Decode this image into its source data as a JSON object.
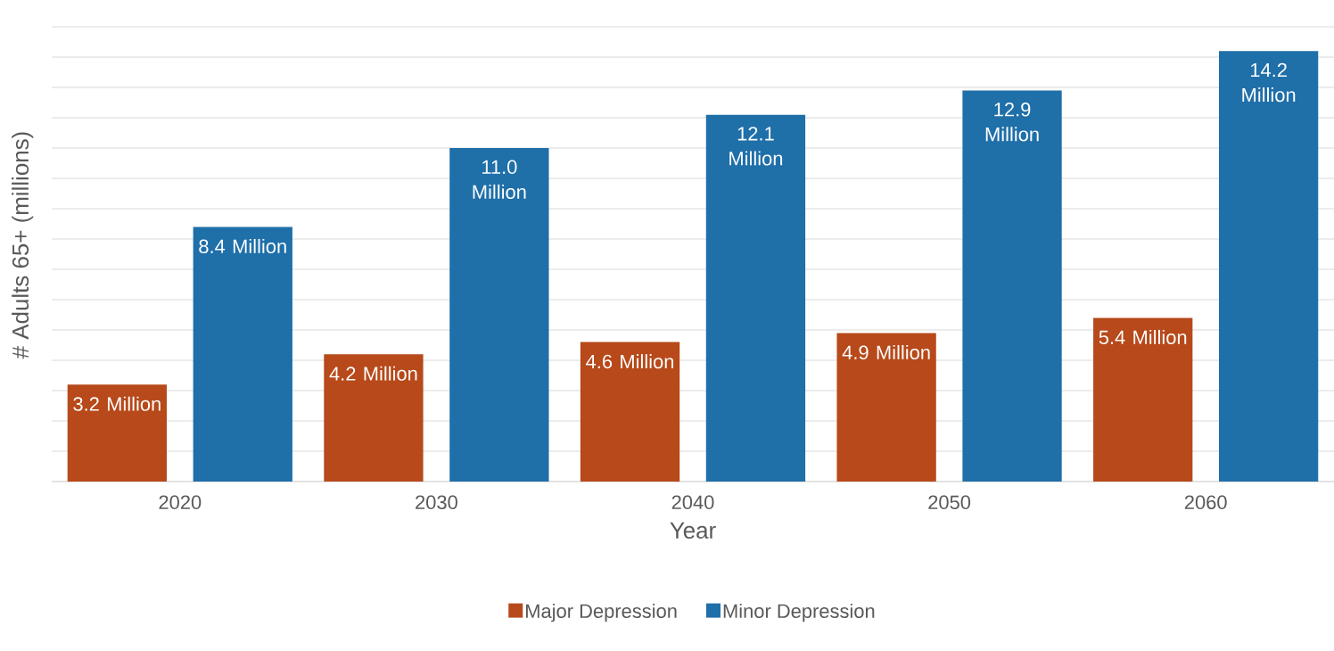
{
  "chart_data": {
    "type": "bar",
    "xlabel": "Year",
    "ylabel": "# Adults 65+ (millions)",
    "categories": [
      "2020",
      "2030",
      "2040",
      "2050",
      "2060"
    ],
    "series": [
      {
        "name": "Major Depression",
        "color": "#b7491a",
        "values": [
          3.2,
          4.2,
          4.6,
          4.9,
          5.4
        ],
        "value_labels": [
          "3.2 Million",
          "4.2 Million",
          "4.6 Million",
          "4.9 Million",
          "5.4 Million"
        ]
      },
      {
        "name": "Minor Depression",
        "color": "#1f6fa9",
        "values": [
          8.4,
          11.0,
          12.1,
          12.9,
          14.2
        ],
        "value_labels": [
          "8.4 Million",
          "11.0 Million",
          "12.1 Million",
          "12.9 Million",
          "14.2 Million"
        ]
      }
    ],
    "tick_labels": "x",
    "grid": "y",
    "legend": "bottom"
  }
}
